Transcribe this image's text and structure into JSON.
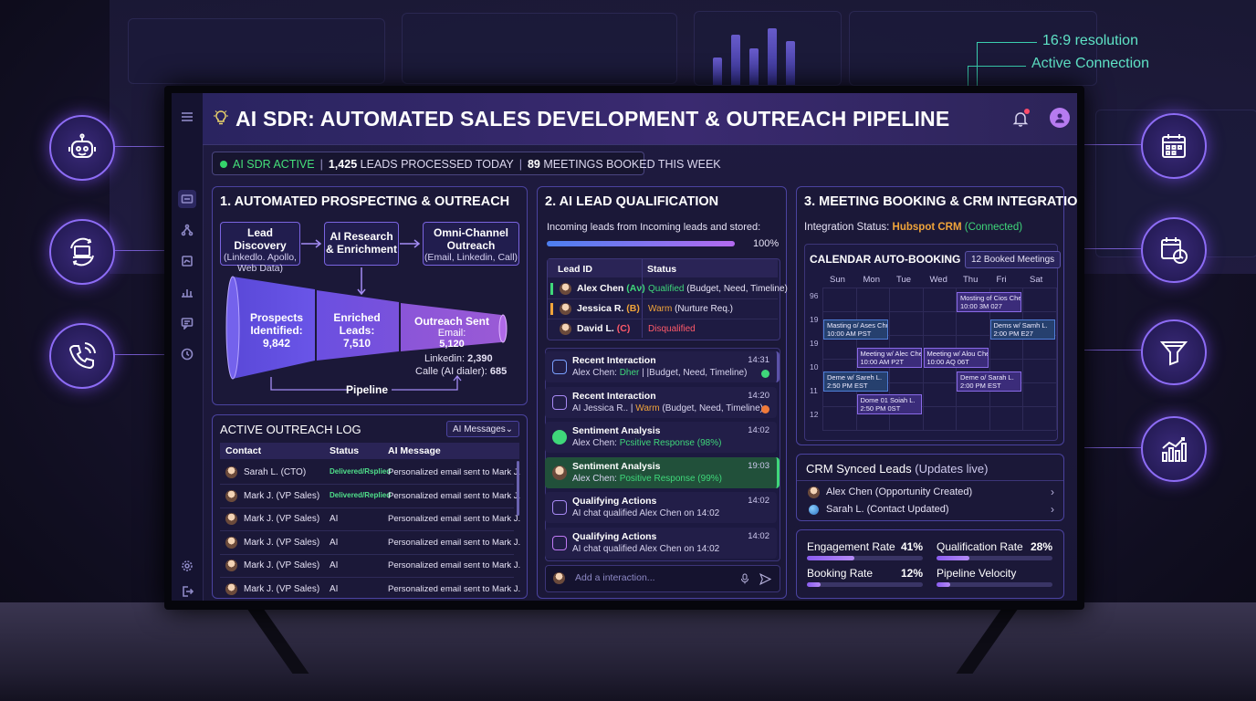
{
  "overlay": {
    "resolution_note": "16:9 resolution",
    "connection_note": "Active Connection"
  },
  "side_icons": [
    "robot-icon",
    "laptop-sync-icon",
    "phone-call-icon",
    "calendar-icon",
    "calendar-clock-icon",
    "funnel-icon",
    "analytics-chart-icon"
  ],
  "header": {
    "title": "AI SDR: AUTOMATED SALES DEVELOPMENT & OUTREACH PIPELINE"
  },
  "statusbar": {
    "active": "AI SDR ACTIVE",
    "leads_count": "1,425",
    "leads_text": "LEADS PROCESSED TODAY",
    "meetings_count": "89",
    "meetings_text": "MEETINGS BOOKED THIS WEEK"
  },
  "prospecting": {
    "title": "1. AUTOMATED PROSPECTING & OUTREACH",
    "step1_title": "Lead Discovery",
    "step1_sub": "(Linkedlo. Apollo, Web Data)",
    "step2_title": "AI Research & Enrichment",
    "step3_title": "Omni-Channel Outreach",
    "step3_sub": "(Email, Linkedin, Call)",
    "stage1_label": "Prospects Identified:",
    "stage1_value": "9,842",
    "stage2_label": "Enriched Leads:",
    "stage2_value": "7,510",
    "stage3_label": "Outreach Sent",
    "stage3_sub": "Email:",
    "stage3_value": "5,120",
    "linkedin_label": "Linkedin:",
    "linkedin_value": "2,390",
    "calle_label": "Calle (AI dialer):",
    "calle_value": "685",
    "pipeline_label": "Pipeline"
  },
  "outreach_log": {
    "title": "ACTIVE OUTREACH LOG",
    "filter": "AI Messages",
    "columns": [
      "Contact",
      "Status",
      "AI Message"
    ],
    "rows": [
      {
        "contact": "Sarah L. (CTO)",
        "status": "Delivered/Rsplied",
        "message": "Personalized email sent to Mark J."
      },
      {
        "contact": "Mark J. (VP Sales)",
        "status": "Delivered/Replied",
        "message": "Personalized email sent to Mark J."
      },
      {
        "contact": "Mark J. (VP Sales)",
        "status": "AI",
        "message": "Personalized email sent to Mark J."
      },
      {
        "contact": "Mark J. (VP Sales)",
        "status": "AI",
        "message": "Personalized email sent to Mark J."
      },
      {
        "contact": "Mark J. (VP Sales)",
        "status": "AI",
        "message": "Personalized email sent to Mark J."
      },
      {
        "contact": "Mark J. (VP Sales)",
        "status": "AI",
        "message": "Personalized email sent to Mark J."
      }
    ]
  },
  "qualification": {
    "title": "2. AI LEAD QUALIFICATION",
    "incoming_text": "Incoming leads from Incoming leads and stored:",
    "progress_label": "100%",
    "progress_value": 1.0,
    "columns": [
      "Lead ID",
      "Status"
    ],
    "leads": [
      {
        "name": "Alex Chen",
        "grade": "(Aν)",
        "status": "Qualified",
        "detail": "(Budget, Need, Timeline)",
        "color": "#3fd77a"
      },
      {
        "name": "Jessica R.",
        "grade": "(B)",
        "status": "Warm",
        "detail": "(Nurture Req.)",
        "color": "#f0a43a"
      },
      {
        "name": "David L.",
        "grade": "(C)",
        "status": "Disqualified",
        "detail": "",
        "color": "#ff5a6a"
      }
    ],
    "interactions": [
      {
        "title": "Recent Interaction",
        "text": "Alex Chen:",
        "highlight": "Dher",
        "rest": "| |Budget, Need, Timeline)",
        "time": "14:31",
        "icon": "chat-icon"
      },
      {
        "title": "Recent Interaction",
        "text": "AI Jessica R.. |",
        "highlight": "Warm",
        "rest": "(Budget, Need, Timeline)",
        "time": "14:20",
        "icon": "phone-icon"
      },
      {
        "title": "Sentiment Analysis",
        "text": "Alex Chen:",
        "highlight": "Pcsitive Response (98%)",
        "rest": "",
        "time": "14:02",
        "icon": "smile-icon"
      },
      {
        "title": "Sentiment Analysis",
        "text": "Alex Chen:",
        "highlight": "Positive Response (99%)",
        "rest": "",
        "time": "19:03",
        "icon": "avatar-icon"
      },
      {
        "title": "Qualifying Actions",
        "text": "AI chat qualified Alex Chen on 14:02",
        "highlight": "",
        "rest": "",
        "time": "14:02",
        "icon": "chat-bubble-icon"
      },
      {
        "title": "Qualifying Actions",
        "text": "AI chat qualified Alex Chen on 14:02",
        "highlight": "",
        "rest": "",
        "time": "14:02",
        "icon": "message-icon"
      }
    ],
    "input_placeholder": "Add a interaction..."
  },
  "booking": {
    "title": "3. MEETING BOOKING & CRM INTEGRATION",
    "integration_label": "Integration Status:",
    "crm_name": "Hubspot CRM",
    "crm_state": "(Connected)",
    "calendar_title": "CALENDAR AUTO-BOOKING",
    "booked_badge": "12 Booked Meetings",
    "days": [
      "Sun",
      "Mon",
      "Tue",
      "Wed",
      "Thu",
      "Fri",
      "Sat"
    ],
    "hours": [
      "96",
      "19",
      "19",
      "10",
      "11",
      "12"
    ],
    "events": [
      {
        "title": "Mosting of Cios Chen",
        "time": "10:00 3M 027"
      },
      {
        "title": "Masting o/ Ases Chun",
        "time": "10:00 AM PST"
      },
      {
        "title": "Dems w/ Samh L.",
        "time": "2:00 PM E27"
      },
      {
        "title": "Meeting w/ Alec Chen",
        "time": "10:00 AM P2T"
      },
      {
        "title": "Meeting w/ Alou Chen",
        "time": "10:00 AQ 06T"
      },
      {
        "title": "Deme w/ Sareh L.",
        "time": "2:50 PM EST"
      },
      {
        "title": "Deme o/ Sarah L.",
        "time": "2:00 PM EST"
      },
      {
        "title": "Dome 01 Soiah L.",
        "time": "2:50 PM 0ST"
      }
    ]
  },
  "crm": {
    "title": "CRM Synced Leads",
    "subtitle": "(Updates live)",
    "items": [
      {
        "label": "Alex Chen (Opportunity Created)"
      },
      {
        "label": "Sarah L. (Contact Updated)"
      }
    ]
  },
  "metrics": {
    "engagement_label": "Engagement Rate",
    "engagement_value": "41%",
    "engagement_fill": 0.41,
    "qualification_label": "Qualification Rate",
    "qualification_value": "28%",
    "qualification_fill": 0.28,
    "booking_label": "Booking Rate",
    "booking_value": "12%",
    "booking_fill": 0.12,
    "velocity_label": "Pipeline Velocity",
    "velocity_fill": 0.12
  },
  "colors": {
    "accent": "#8a5cf0",
    "success": "#3fd77a",
    "warning": "#f0a43a",
    "danger": "#ff5a6a",
    "crm": "#f0a43a"
  }
}
